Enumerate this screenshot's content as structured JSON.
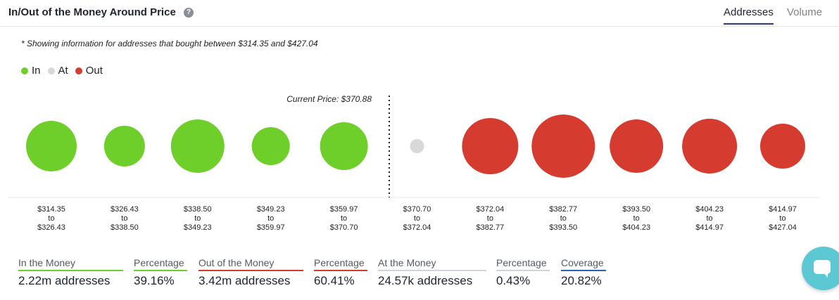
{
  "header": {
    "title": "In/Out of the Money Around Price",
    "tabs": [
      "Addresses",
      "Volume"
    ],
    "active_tab": "Addresses"
  },
  "note": "* Showing information for addresses that bought between $314.35 and $427.04",
  "legend": [
    {
      "label": "In",
      "color": "#6fcf2a"
    },
    {
      "label": "At",
      "color": "#d8d8d8"
    },
    {
      "label": "Out",
      "color": "#d63b30"
    }
  ],
  "colors": {
    "in": "#6fcf2a",
    "at": "#d8d8d8",
    "out": "#d63b30"
  },
  "chart_data": {
    "type": "scatter",
    "current_price_label": "Current Price: $370.88",
    "buckets": [
      {
        "from": "$314.35",
        "to": "$326.43",
        "status": "in",
        "size": 36
      },
      {
        "from": "$326.43",
        "to": "$338.50",
        "status": "in",
        "size": 29
      },
      {
        "from": "$338.50",
        "to": "$349.23",
        "status": "in",
        "size": 38
      },
      {
        "from": "$349.23",
        "to": "$359.97",
        "status": "in",
        "size": 27
      },
      {
        "from": "$359.97",
        "to": "$370.70",
        "status": "in",
        "size": 34
      },
      {
        "from": "$370.70",
        "to": "$372.04",
        "status": "at",
        "size": 10
      },
      {
        "from": "$372.04",
        "to": "$382.77",
        "status": "out",
        "size": 40
      },
      {
        "from": "$382.77",
        "to": "$393.50",
        "status": "out",
        "size": 45
      },
      {
        "from": "$393.50",
        "to": "$404.23",
        "status": "out",
        "size": 38
      },
      {
        "from": "$404.23",
        "to": "$414.97",
        "status": "out",
        "size": 39
      },
      {
        "from": "$414.97",
        "to": "$427.04",
        "status": "out",
        "size": 32
      }
    ],
    "range_connector": "to"
  },
  "stats": [
    {
      "label": "In the Money",
      "value": "2.22m addresses",
      "kind": "green"
    },
    {
      "label": "Percentage",
      "value": "39.16%",
      "kind": "green"
    },
    {
      "label": "Out of the Money",
      "value": "3.42m addresses",
      "kind": "red"
    },
    {
      "label": "Percentage",
      "value": "60.41%",
      "kind": "red"
    },
    {
      "label": "At the Money",
      "value": "24.57k addresses",
      "kind": "gray"
    },
    {
      "label": "Percentage",
      "value": "0.43%",
      "kind": "gray"
    },
    {
      "label": "Coverage",
      "value": "20.82%",
      "kind": "blue"
    }
  ]
}
